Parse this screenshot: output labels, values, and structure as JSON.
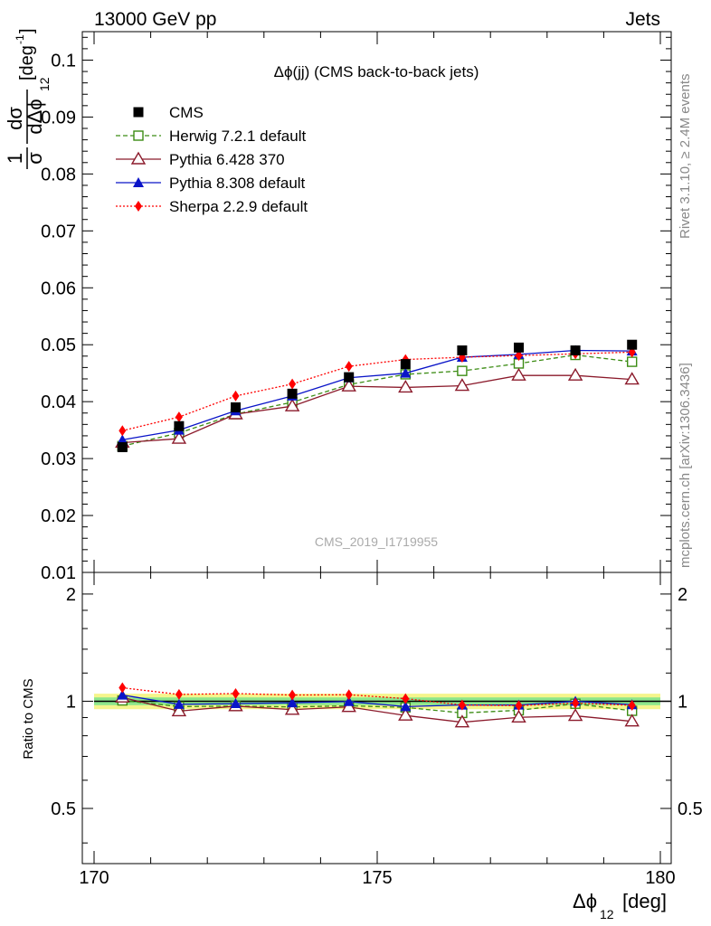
{
  "header": {
    "left": "13000 GeV pp",
    "right": "Jets"
  },
  "side_labels": {
    "rivet": "Rivet 3.1.10, ≥ 2.4M events",
    "source": "mcplots.cern.ch [arXiv:1306.3436]"
  },
  "chart_data": [
    {
      "type": "line",
      "title": "Δϕ(jj) (CMS back-to-back jets)",
      "watermark": "CMS_2019_I1719955",
      "ylabel_parts": {
        "one": "1",
        "sigma": "σ",
        "dsigma": "dσ",
        "ddphi": "dΔϕ",
        "sub": "12",
        "unit_open": "[deg",
        "unit_exp": "-1",
        "unit_close": "]"
      },
      "xlim": [
        170,
        180
      ],
      "ylim": [
        0.01,
        0.105
      ],
      "yticks": [
        0.01,
        0.02,
        0.03,
        0.04,
        0.05,
        0.06,
        0.07,
        0.08,
        0.09,
        0.1
      ],
      "ytick_labels": [
        "0.01",
        "0.02",
        "0.03",
        "0.04",
        "0.05",
        "0.06",
        "0.07",
        "0.08",
        "0.09",
        "0.1"
      ],
      "x": [
        170.5,
        171.5,
        172.5,
        173.5,
        174.5,
        175.5,
        176.5,
        177.5,
        178.5,
        179.5
      ],
      "legend_position": "top-left",
      "series": [
        {
          "name": "CMS",
          "style": "data",
          "marker": "square-filled",
          "color": "#000000",
          "values": [
            0.032,
            0.0357,
            0.039,
            0.0414,
            0.0443,
            0.0466,
            0.049,
            0.0495,
            0.049,
            0.05
          ]
        },
        {
          "name": "Herwig 7.2.1 default",
          "style": "dashed",
          "marker": "square-open",
          "color": "#3c8c14",
          "values": [
            0.0322,
            0.0345,
            0.0378,
            0.0399,
            0.043,
            0.0448,
            0.0454,
            0.0467,
            0.0482,
            0.047
          ]
        },
        {
          "name": "Pythia 6.428 370",
          "style": "solid",
          "marker": "triangle-open",
          "color": "#8b1a2b",
          "values": [
            0.0328,
            0.0335,
            0.0378,
            0.0392,
            0.0427,
            0.0425,
            0.0428,
            0.0446,
            0.0446,
            0.0439
          ]
        },
        {
          "name": "Pythia 8.308 default",
          "style": "solid",
          "marker": "triangle-filled",
          "color": "#0a14c8",
          "values": [
            0.0333,
            0.035,
            0.0384,
            0.041,
            0.0442,
            0.045,
            0.0478,
            0.0483,
            0.049,
            0.0489
          ]
        },
        {
          "name": "Sherpa 2.2.9 default",
          "style": "dotted",
          "marker": "diamond-filled",
          "color": "#ff0000",
          "values": [
            0.0349,
            0.0373,
            0.041,
            0.0431,
            0.0462,
            0.0474,
            0.0478,
            0.0481,
            0.0484,
            0.0487
          ]
        }
      ]
    },
    {
      "type": "line",
      "ylabel": "Ratio to CMS",
      "xlabel_parts": {
        "sym": "Δϕ",
        "sub": "12",
        "unit": "[deg]"
      },
      "xlim": [
        170,
        180
      ],
      "ylim": [
        0.35,
        2.3
      ],
      "xticks": [
        170,
        175,
        180
      ],
      "xtick_labels": [
        "170",
        "175",
        "180"
      ],
      "yticks": [
        0.5,
        1,
        2
      ],
      "ytick_labels": [
        "0.5",
        "1",
        "2"
      ],
      "x": [
        170.5,
        171.5,
        172.5,
        173.5,
        174.5,
        175.5,
        176.5,
        177.5,
        178.5,
        179.5
      ],
      "band": {
        "outer": 0.05,
        "inner": 0.025,
        "outer_color": "#f5f58c",
        "inner_color": "#8ce68c"
      },
      "series": [
        {
          "name": "Herwig 7.2.1 default",
          "style": "dashed",
          "marker": "square-open",
          "color": "#3c8c14",
          "values": [
            1.005,
            0.966,
            0.969,
            0.964,
            0.971,
            0.961,
            0.927,
            0.943,
            0.984,
            0.94
          ]
        },
        {
          "name": "Pythia 6.428 370",
          "style": "solid",
          "marker": "triangle-open",
          "color": "#8b1a2b",
          "values": [
            1.025,
            0.938,
            0.969,
            0.947,
            0.964,
            0.912,
            0.873,
            0.901,
            0.91,
            0.878
          ]
        },
        {
          "name": "Pythia 8.308 default",
          "style": "solid",
          "marker": "triangle-filled",
          "color": "#0a14c8",
          "values": [
            1.041,
            0.98,
            0.985,
            0.99,
            0.998,
            0.966,
            0.976,
            0.976,
            1.0,
            0.978
          ]
        },
        {
          "name": "Sherpa 2.2.9 default",
          "style": "dotted",
          "marker": "diamond-filled",
          "color": "#ff0000",
          "values": [
            1.091,
            1.045,
            1.051,
            1.041,
            1.043,
            1.017,
            0.976,
            0.972,
            0.988,
            0.974
          ]
        }
      ]
    }
  ]
}
